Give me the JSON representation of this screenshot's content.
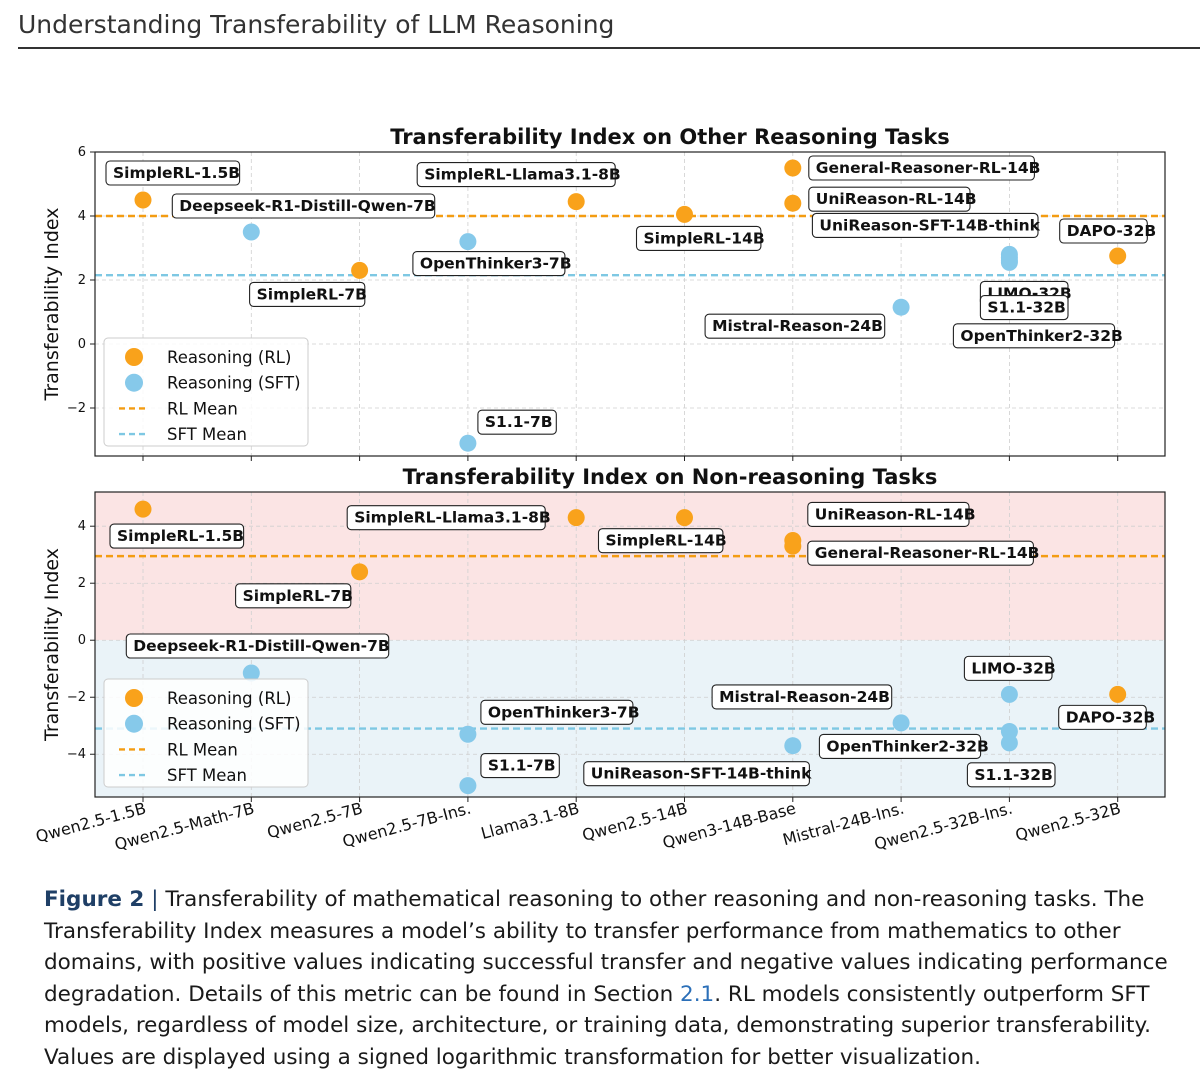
{
  "header": {
    "title": "Understanding Transferability of LLM Reasoning"
  },
  "colors": {
    "rl": "#f9a21b",
    "sft": "#86c9ea",
    "rl_mean": "#f39c12",
    "sft_mean": "#7ec8e3",
    "positive_band": "#fbe4e4",
    "negative_band": "#eaf3f8"
  },
  "chart_data": [
    {
      "type": "scatter",
      "title": "Transferability Index on Other Reasoning Tasks",
      "ylabel": "Transferability Index",
      "ylim": [
        -3.5,
        6
      ],
      "yticks": [
        "6",
        "4",
        "2",
        "0",
        "−2"
      ],
      "yticks_values": [
        6,
        4,
        2,
        0,
        -2
      ],
      "categories": [
        "Qwen2.5-1.5B",
        "Qwen2.5-Math-7B",
        "Qwen2.5-7B",
        "Qwen2.5-7B-Ins.",
        "Llama3.1-8B",
        "Qwen2.5-14B",
        "Qwen3-14B-Base",
        "Mistral-24B-Ins.",
        "Qwen2.5-32B-Ins.",
        "Qwen2.5-32B"
      ],
      "rl_mean": 4.0,
      "sft_mean": 2.15,
      "points": [
        {
          "x": 0,
          "y": 4.5,
          "kind": "rl",
          "label": "SimpleRL-1.5B"
        },
        {
          "x": 1,
          "y": 3.5,
          "kind": "sft",
          "label": "Deepseek-R1-Distill-Qwen-7B"
        },
        {
          "x": 2,
          "y": 2.3,
          "kind": "rl",
          "label": "SimpleRL-7B"
        },
        {
          "x": 3,
          "y": 3.2,
          "kind": "sft",
          "label": "OpenThinker3-7B"
        },
        {
          "x": 3,
          "y": -3.1,
          "kind": "sft",
          "label": "S1.1-7B"
        },
        {
          "x": 4,
          "y": 4.45,
          "kind": "rl",
          "label": "SimpleRL-Llama3.1-8B"
        },
        {
          "x": 5,
          "y": 4.05,
          "kind": "rl",
          "label": "SimpleRL-14B"
        },
        {
          "x": 6,
          "y": 5.5,
          "kind": "rl",
          "label": "General-Reasoner-RL-14B"
        },
        {
          "x": 6,
          "y": 4.4,
          "kind": "rl",
          "label": "UniReason-RL-14B"
        },
        {
          "x": 8,
          "y": 2.8,
          "kind": "sft",
          "label": "UniReason-SFT-14B-think"
        },
        {
          "x": 7,
          "y": 1.15,
          "kind": "sft",
          "label": "Mistral-Reason-24B"
        },
        {
          "x": 8,
          "y": 2.55,
          "kind": "sft",
          "label": "LIMO-32B"
        },
        {
          "x": 8,
          "y": 2.7,
          "kind": "sft",
          "label": "S1.1-32B"
        },
        {
          "x": 8,
          "y": 2.6,
          "kind": "sft",
          "label": "OpenThinker2-32B"
        },
        {
          "x": 9,
          "y": 2.75,
          "kind": "rl",
          "label": "DAPO-32B"
        }
      ],
      "legend": [
        "Reasoning (RL)",
        "Reasoning (SFT)",
        "RL Mean",
        "SFT Mean"
      ],
      "legend_position": "lower-left"
    },
    {
      "type": "scatter",
      "title": "Transferability Index on Non-reasoning Tasks",
      "ylabel": "Transferability Index",
      "ylim": [
        -5.5,
        5.2
      ],
      "yticks": [
        "4",
        "2",
        "0",
        "−2",
        "−4"
      ],
      "yticks_values": [
        4,
        2,
        0,
        -2,
        -4
      ],
      "categories": [
        "Qwen2.5-1.5B",
        "Qwen2.5-Math-7B",
        "Qwen2.5-7B",
        "Qwen2.5-7B-Ins.",
        "Llama3.1-8B",
        "Qwen2.5-14B",
        "Qwen3-14B-Base",
        "Mistral-24B-Ins.",
        "Qwen2.5-32B-Ins.",
        "Qwen2.5-32B"
      ],
      "rl_mean": 2.95,
      "sft_mean": -3.1,
      "points": [
        {
          "x": 0,
          "y": 4.6,
          "kind": "rl",
          "label": "SimpleRL-1.5B"
        },
        {
          "x": 1,
          "y": -1.15,
          "kind": "sft",
          "label": "Deepseek-R1-Distill-Qwen-7B"
        },
        {
          "x": 2,
          "y": 2.4,
          "kind": "rl",
          "label": "SimpleRL-7B"
        },
        {
          "x": 3,
          "y": -3.3,
          "kind": "sft",
          "label": "OpenThinker3-7B"
        },
        {
          "x": 3,
          "y": -5.1,
          "kind": "sft",
          "label": "S1.1-7B"
        },
        {
          "x": 4,
          "y": 4.3,
          "kind": "rl",
          "label": "SimpleRL-Llama3.1-8B"
        },
        {
          "x": 5,
          "y": 4.3,
          "kind": "rl",
          "label": "SimpleRL-14B"
        },
        {
          "x": 6,
          "y": 3.5,
          "kind": "rl",
          "label": "UniReason-RL-14B"
        },
        {
          "x": 6,
          "y": 3.3,
          "kind": "rl",
          "label": "General-Reasoner-RL-14B"
        },
        {
          "x": 6,
          "y": -3.7,
          "kind": "sft",
          "label": "UniReason-SFT-14B-think"
        },
        {
          "x": 7,
          "y": -2.9,
          "kind": "sft",
          "label": "Mistral-Reason-24B"
        },
        {
          "x": 8,
          "y": -1.9,
          "kind": "sft",
          "label": "LIMO-32B"
        },
        {
          "x": 8,
          "y": -3.2,
          "kind": "sft",
          "label": "OpenThinker2-32B"
        },
        {
          "x": 8,
          "y": -3.6,
          "kind": "sft",
          "label": "S1.1-32B"
        },
        {
          "x": 9,
          "y": -1.9,
          "kind": "rl",
          "label": "DAPO-32B"
        }
      ],
      "legend": [
        "Reasoning (RL)",
        "Reasoning (SFT)",
        "RL Mean",
        "SFT Mean"
      ],
      "legend_position": "lower-left"
    }
  ],
  "caption": {
    "figure_label": "Figure 2",
    "separator": "|",
    "text_1": "Transferability of mathematical reasoning to other reasoning and non-reasoning tasks. The Transferability Index measures a model’s ability to transfer performance from mathematics to other domains, with positive values indicating successful transfer and negative values indicating performance degradation. Details of this metric can be found in Section ",
    "section_link": "2.1",
    "text_2": ". RL models consistently outperform SFT models, regardless of model size, architecture, or training data, demonstrating superior transferability. Values are displayed using a signed logarithmic transformation for better visualization."
  }
}
